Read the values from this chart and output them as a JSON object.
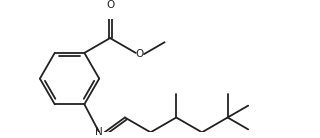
{
  "background": "#ffffff",
  "line_color": "#222222",
  "lw": 1.3,
  "figsize": [
    3.2,
    1.38
  ],
  "dpi": 100,
  "xlim": [
    0.0,
    8.5
  ],
  "ylim": [
    -0.2,
    3.6
  ]
}
